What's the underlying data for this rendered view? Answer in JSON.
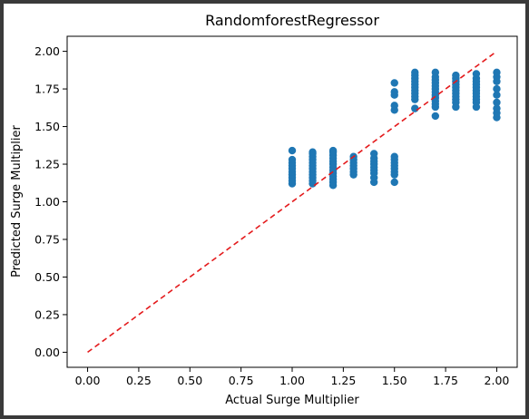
{
  "chart_data": {
    "type": "scatter",
    "title": "RandomforestRegressor",
    "xlabel": "Actual Surge Multiplier",
    "ylabel": "Predicted Surge Multiplier",
    "xlim": [
      -0.1,
      2.1
    ],
    "ylim": [
      -0.1,
      2.1
    ],
    "xticks": [
      "0.00",
      "0.25",
      "0.50",
      "0.75",
      "1.00",
      "1.25",
      "1.50",
      "1.75",
      "2.00"
    ],
    "yticks": [
      "0.00",
      "0.25",
      "0.50",
      "0.75",
      "1.00",
      "1.25",
      "1.50",
      "1.75",
      "2.00"
    ],
    "grid": false,
    "colors": {
      "points": "#1f77b4",
      "reference_line": "#e41a1c"
    },
    "reference_line": {
      "x": [
        0,
        2
      ],
      "y": [
        0,
        2
      ],
      "style": "dashed"
    },
    "series": [
      {
        "points": [
          [
            1.0,
            1.12
          ],
          [
            1.0,
            1.14
          ],
          [
            1.0,
            1.16
          ],
          [
            1.0,
            1.18
          ],
          [
            1.0,
            1.2
          ],
          [
            1.0,
            1.22
          ],
          [
            1.0,
            1.24
          ],
          [
            1.0,
            1.26
          ],
          [
            1.0,
            1.28
          ],
          [
            1.0,
            1.34
          ],
          [
            1.1,
            1.12
          ],
          [
            1.1,
            1.14
          ],
          [
            1.1,
            1.16
          ],
          [
            1.1,
            1.18
          ],
          [
            1.1,
            1.2
          ],
          [
            1.1,
            1.22
          ],
          [
            1.1,
            1.24
          ],
          [
            1.1,
            1.26
          ],
          [
            1.1,
            1.28
          ],
          [
            1.1,
            1.3
          ],
          [
            1.1,
            1.32
          ],
          [
            1.1,
            1.33
          ],
          [
            1.2,
            1.11
          ],
          [
            1.2,
            1.13
          ],
          [
            1.2,
            1.15
          ],
          [
            1.2,
            1.17
          ],
          [
            1.2,
            1.19
          ],
          [
            1.2,
            1.21
          ],
          [
            1.2,
            1.23
          ],
          [
            1.2,
            1.25
          ],
          [
            1.2,
            1.27
          ],
          [
            1.2,
            1.29
          ],
          [
            1.2,
            1.31
          ],
          [
            1.2,
            1.33
          ],
          [
            1.2,
            1.34
          ],
          [
            1.3,
            1.18
          ],
          [
            1.3,
            1.2
          ],
          [
            1.3,
            1.22
          ],
          [
            1.3,
            1.24
          ],
          [
            1.3,
            1.26
          ],
          [
            1.3,
            1.28
          ],
          [
            1.3,
            1.3
          ],
          [
            1.4,
            1.13
          ],
          [
            1.4,
            1.16
          ],
          [
            1.4,
            1.19
          ],
          [
            1.4,
            1.21
          ],
          [
            1.4,
            1.23
          ],
          [
            1.4,
            1.25
          ],
          [
            1.4,
            1.27
          ],
          [
            1.4,
            1.29
          ],
          [
            1.4,
            1.32
          ],
          [
            1.5,
            1.13
          ],
          [
            1.5,
            1.18
          ],
          [
            1.5,
            1.2
          ],
          [
            1.5,
            1.22
          ],
          [
            1.5,
            1.24
          ],
          [
            1.5,
            1.26
          ],
          [
            1.5,
            1.28
          ],
          [
            1.5,
            1.3
          ],
          [
            1.5,
            1.61
          ],
          [
            1.5,
            1.64
          ],
          [
            1.5,
            1.71
          ],
          [
            1.5,
            1.73
          ],
          [
            1.5,
            1.79
          ],
          [
            1.6,
            1.62
          ],
          [
            1.6,
            1.68
          ],
          [
            1.6,
            1.7
          ],
          [
            1.6,
            1.72
          ],
          [
            1.6,
            1.74
          ],
          [
            1.6,
            1.76
          ],
          [
            1.6,
            1.78
          ],
          [
            1.6,
            1.8
          ],
          [
            1.6,
            1.82
          ],
          [
            1.6,
            1.84
          ],
          [
            1.6,
            1.86
          ],
          [
            1.7,
            1.57
          ],
          [
            1.7,
            1.63
          ],
          [
            1.7,
            1.65
          ],
          [
            1.7,
            1.67
          ],
          [
            1.7,
            1.69
          ],
          [
            1.7,
            1.71
          ],
          [
            1.7,
            1.73
          ],
          [
            1.7,
            1.75
          ],
          [
            1.7,
            1.77
          ],
          [
            1.7,
            1.79
          ],
          [
            1.7,
            1.81
          ],
          [
            1.7,
            1.83
          ],
          [
            1.7,
            1.86
          ],
          [
            1.8,
            1.63
          ],
          [
            1.8,
            1.66
          ],
          [
            1.8,
            1.68
          ],
          [
            1.8,
            1.7
          ],
          [
            1.8,
            1.72
          ],
          [
            1.8,
            1.74
          ],
          [
            1.8,
            1.76
          ],
          [
            1.8,
            1.78
          ],
          [
            1.8,
            1.8
          ],
          [
            1.8,
            1.82
          ],
          [
            1.8,
            1.84
          ],
          [
            1.9,
            1.63
          ],
          [
            1.9,
            1.66
          ],
          [
            1.9,
            1.68
          ],
          [
            1.9,
            1.7
          ],
          [
            1.9,
            1.72
          ],
          [
            1.9,
            1.74
          ],
          [
            1.9,
            1.76
          ],
          [
            1.9,
            1.78
          ],
          [
            1.9,
            1.8
          ],
          [
            1.9,
            1.82
          ],
          [
            1.9,
            1.85
          ],
          [
            2.0,
            1.56
          ],
          [
            2.0,
            1.59
          ],
          [
            2.0,
            1.62
          ],
          [
            2.0,
            1.66
          ],
          [
            2.0,
            1.71
          ],
          [
            2.0,
            1.75
          ],
          [
            2.0,
            1.8
          ],
          [
            2.0,
            1.83
          ],
          [
            2.0,
            1.86
          ]
        ]
      }
    ]
  }
}
